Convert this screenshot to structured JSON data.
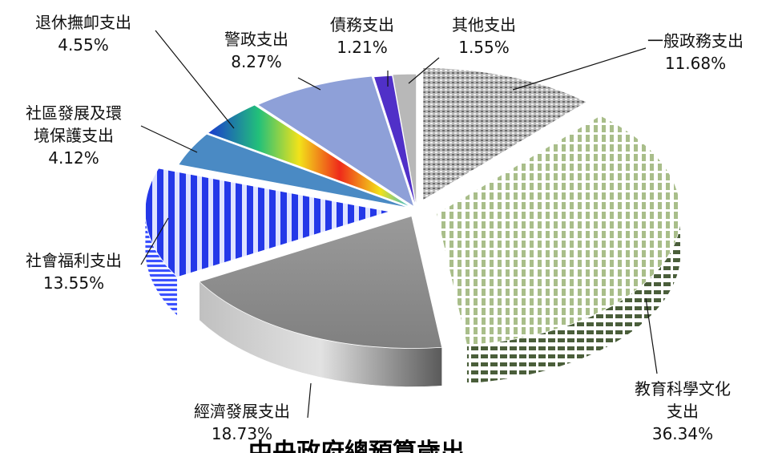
{
  "chart_data": {
    "type": "pie",
    "style": "3d-exploded",
    "categories": [
      "一般政務支出",
      "教育科學文化支出",
      "經濟發展支出",
      "社會福利支出",
      "社區發展及環境保護支出",
      "退休撫卹支出",
      "警政支出",
      "債務支出",
      "其他支出"
    ],
    "values": [
      11.68,
      36.34,
      18.73,
      13.55,
      4.12,
      4.55,
      8.27,
      1.21,
      1.55
    ],
    "labels": [
      {
        "lines": [
          "一般政務支出"
        ],
        "pct": "11.68%"
      },
      {
        "lines": [
          "教育科學文化",
          "支出"
        ],
        "pct": "36.34%"
      },
      {
        "lines": [
          "經濟發展支出"
        ],
        "pct": "18.73%"
      },
      {
        "lines": [
          "社會福利支出"
        ],
        "pct": "13.55%"
      },
      {
        "lines": [
          "社區發展及環",
          "境保護支出"
        ],
        "pct": "4.12%"
      },
      {
        "lines": [
          "退休撫卹支出"
        ],
        "pct": "4.55%"
      },
      {
        "lines": [
          "警政支出"
        ],
        "pct": "8.27%"
      },
      {
        "lines": [
          "債務支出"
        ],
        "pct": "1.21%"
      },
      {
        "lines": [
          "其他支出"
        ],
        "pct": "1.55%"
      }
    ],
    "colors": [
      "#8e8e8e",
      "#a8bd88",
      "#8a8a8a",
      "#3348e0",
      "#4a86bf",
      "#f2c01a",
      "#8ea0d6",
      "#5a35c0",
      "#b4b4b4"
    ]
  },
  "footer_title": "中央政府總預算歲出"
}
